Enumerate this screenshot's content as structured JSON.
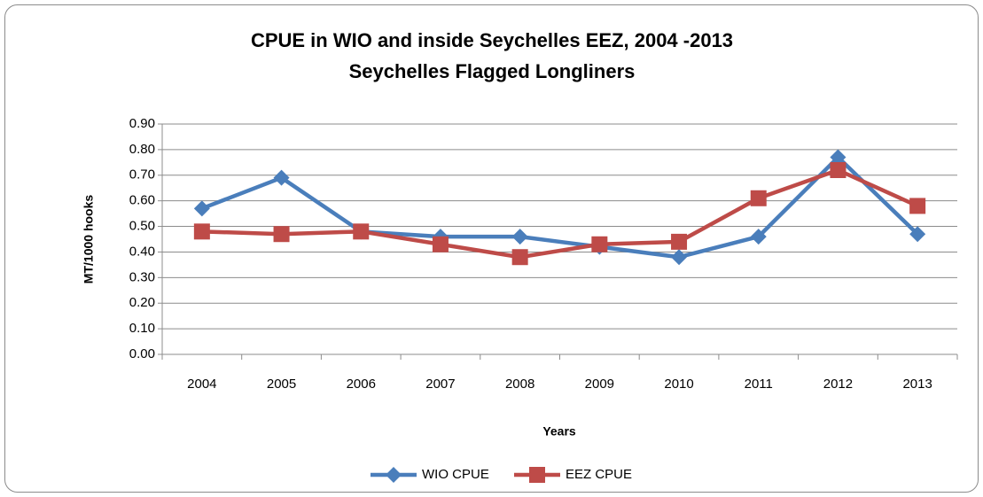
{
  "chart_data": {
    "type": "line",
    "title": "CPUE in WIO and  inside  Seychelles EEZ, 2004 -2013",
    "subtitle": "Seychelles Flagged Longliners",
    "x_label": "Years",
    "y_label": "MT/1000 hooks",
    "categories": [
      "2004",
      "2005",
      "2006",
      "2007",
      "2008",
      "2009",
      "2010",
      "2011",
      "2012",
      "2013"
    ],
    "series": [
      {
        "name": "WIO CPUE",
        "color": "#4a7ebb",
        "marker": "diamond",
        "values": [
          0.57,
          0.69,
          0.48,
          0.46,
          0.46,
          0.42,
          0.38,
          0.46,
          0.77,
          0.47
        ]
      },
      {
        "name": "EEZ CPUE",
        "color": "#be4b48",
        "marker": "square",
        "values": [
          0.48,
          0.47,
          0.48,
          0.43,
          0.38,
          0.43,
          0.44,
          0.61,
          0.72,
          0.58
        ]
      }
    ],
    "ylim": [
      0,
      0.9
    ],
    "yticks": [
      {
        "value": 0,
        "label": "0.00"
      },
      {
        "value": 0.1,
        "label": "0.10"
      },
      {
        "value": 0.2,
        "label": "0.20"
      },
      {
        "value": 0.3,
        "label": "0.30"
      },
      {
        "value": 0.4,
        "label": "0.40"
      },
      {
        "value": 0.5,
        "label": "0.50"
      },
      {
        "value": 0.6,
        "label": "0.60"
      },
      {
        "value": 0.7,
        "label": "0.70"
      },
      {
        "value": 0.8,
        "label": "0.80"
      },
      {
        "value": 0.9,
        "label": "0.90"
      }
    ],
    "grid": true,
    "legend": "bottom"
  }
}
